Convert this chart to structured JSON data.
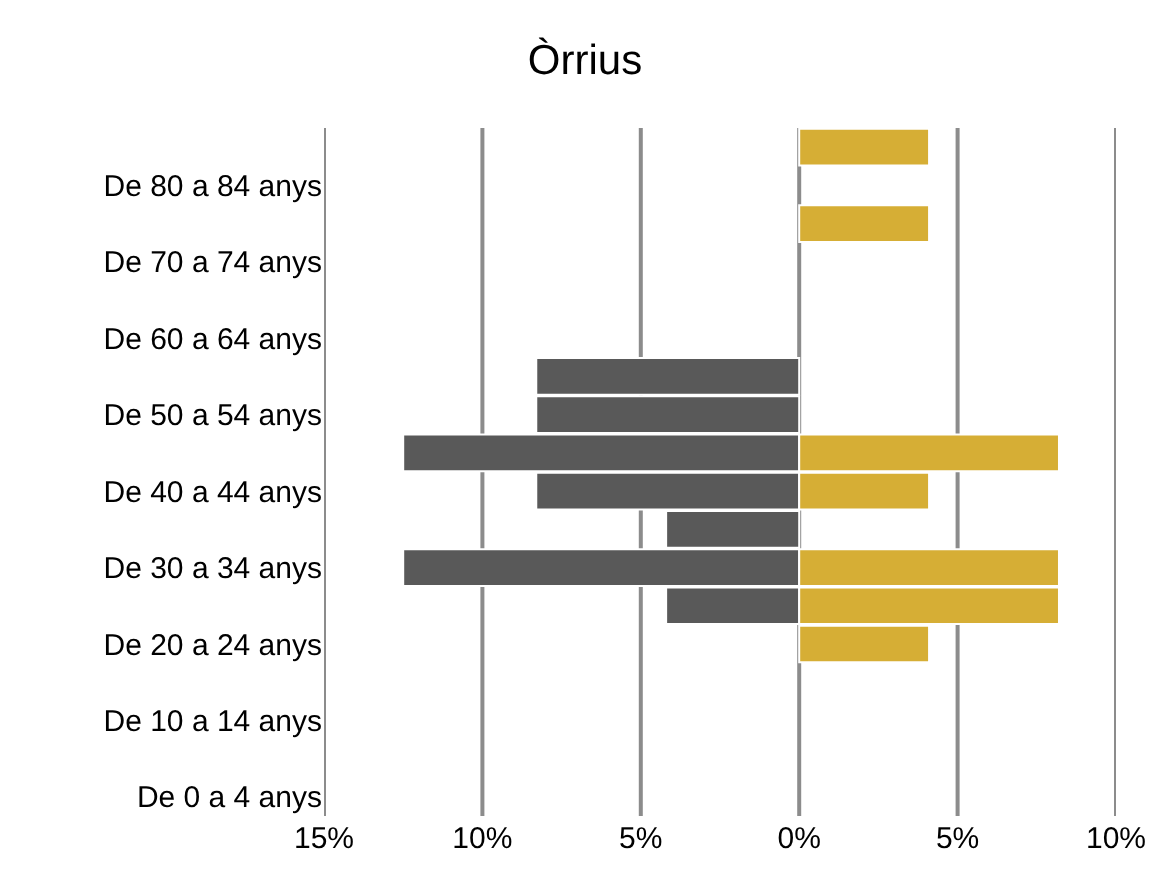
{
  "chart_data": {
    "type": "bar",
    "title": "Òrrius",
    "orientation": "horizontal",
    "stacked": true,
    "categories": [
      null,
      "De 80 a 84 anys",
      null,
      "De 70 a 74 anys",
      null,
      "De 60 a 64 anys",
      null,
      "De 50 a 54 anys",
      null,
      "De 40 a 44 anys",
      null,
      "De 30 a 34 anys",
      null,
      "De 20 a 24 anys",
      null,
      "De 10 a 14 anys",
      null,
      "De 0 a 4 anys"
    ],
    "series": [
      {
        "color": "#595959",
        "values": [
          null,
          null,
          null,
          null,
          null,
          null,
          -8.3,
          -8.3,
          -12.5,
          -8.3,
          -4.2,
          -12.5,
          -4.2,
          null,
          null,
          null,
          null,
          null
        ]
      },
      {
        "color": "#d6ae35",
        "values": [
          4.1,
          null,
          4.1,
          null,
          null,
          null,
          null,
          null,
          8.2,
          4.1,
          null,
          8.2,
          8.2,
          4.1,
          null,
          null,
          null,
          null
        ]
      }
    ],
    "xlim": [
      -15,
      10
    ],
    "xticks": [
      {
        "value": -15,
        "label": "15%"
      },
      {
        "value": -10,
        "label": "10%"
      },
      {
        "value": -5,
        "label": "5%"
      },
      {
        "value": 0,
        "label": "0%"
      },
      {
        "value": 5,
        "label": "5%"
      },
      {
        "value": 10,
        "label": "10%"
      }
    ],
    "grid": "x"
  }
}
